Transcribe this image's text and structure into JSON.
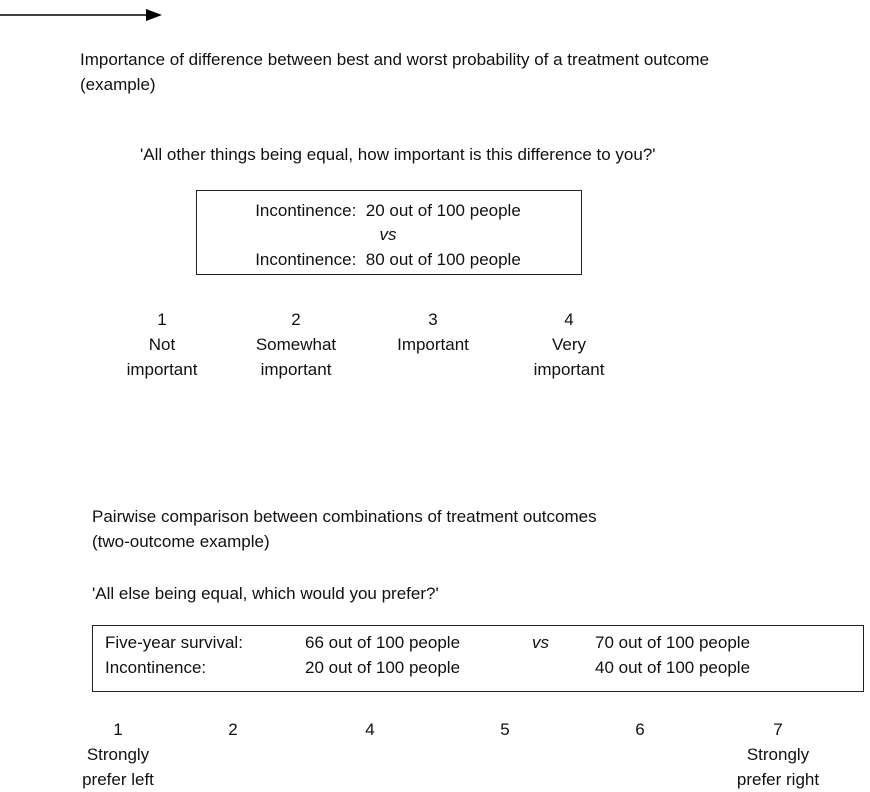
{
  "section1": {
    "title": [
      "Importance of difference between best and worst probability of a treatment outcome",
      "(example)"
    ],
    "question": "'All other things being equal, how important is this difference to you?'",
    "box": [
      "Incontinence:  20 out of 100 people",
      "vs",
      "Incontinence:  80 out of 100 people"
    ],
    "scale": [
      {
        "number": 1,
        "label": [
          "Not",
          "important"
        ]
      },
      {
        "number": 2,
        "label": [
          "Somewhat",
          "important"
        ]
      },
      {
        "number": 3,
        "label": [
          "Important"
        ]
      },
      {
        "number": 4,
        "label": [
          "Very",
          "important"
        ]
      }
    ]
  },
  "section2": {
    "title": [
      "Pairwise comparison between combinations of treatment outcomes",
      "(two-outcome example)"
    ],
    "question": "'All else being equal, which would you prefer?'",
    "box": {
      "rows": [
        {
          "attribute": "Five-year survival:",
          "left": "66 out of 100 people",
          "right": "70 out of 100 people"
        },
        {
          "attribute": "Incontinence:",
          "left": "20 out of 100 people",
          "right": "40 out of 100 people"
        }
      ],
      "vs": "vs"
    },
    "scale": [
      {
        "number": 1,
        "label": [
          "Strongly",
          "prefer left"
        ]
      },
      {
        "number": 2
      },
      {
        "number": 4
      },
      {
        "number": 5
      },
      {
        "number": 6
      },
      {
        "number": 7,
        "label": [
          "Strongly",
          "prefer right"
        ]
      }
    ]
  }
}
